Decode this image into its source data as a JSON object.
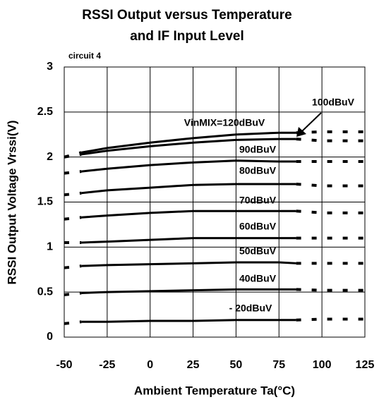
{
  "chart_data": {
    "type": "line",
    "title": [
      "RSSI Output versus Temperature",
      "and IF Input Level"
    ],
    "subtitle": "circuit 4",
    "xlabel": "Ambient Temperature Ta(°C)",
    "ylabel": "RSSI Output Voltage Vrssi(V)",
    "x": [
      -50,
      -40,
      -25,
      0,
      25,
      50,
      75,
      85,
      100,
      125
    ],
    "solid_range": [
      -40,
      85
    ],
    "series": [
      {
        "name": "VinMIX=120dBuV",
        "color": "#000000",
        "values": [
          2.0,
          2.05,
          2.1,
          2.16,
          2.21,
          2.25,
          2.27,
          2.27,
          2.28,
          2.28
        ]
      },
      {
        "name": "100dBuV",
        "color": "#000000",
        "values": [
          2.0,
          2.03,
          2.07,
          2.12,
          2.16,
          2.19,
          2.2,
          2.2,
          2.18,
          2.18
        ]
      },
      {
        "name": "90dBuV",
        "color": "#000000",
        "values": [
          1.82,
          1.84,
          1.87,
          1.91,
          1.94,
          1.96,
          1.95,
          1.95,
          1.95,
          1.95
        ]
      },
      {
        "name": "80dBuV",
        "color": "#000000",
        "values": [
          1.58,
          1.6,
          1.63,
          1.66,
          1.69,
          1.7,
          1.7,
          1.7,
          1.68,
          1.68
        ]
      },
      {
        "name": "70dBuV",
        "color": "#000000",
        "values": [
          1.31,
          1.33,
          1.35,
          1.38,
          1.4,
          1.4,
          1.4,
          1.4,
          1.38,
          1.38
        ]
      },
      {
        "name": "60dBuV",
        "color": "#000000",
        "values": [
          1.05,
          1.05,
          1.06,
          1.08,
          1.1,
          1.1,
          1.1,
          1.1,
          1.1,
          1.1
        ]
      },
      {
        "name": "50dBuV",
        "color": "#000000",
        "values": [
          0.77,
          0.79,
          0.8,
          0.81,
          0.82,
          0.83,
          0.83,
          0.82,
          0.82,
          0.82
        ]
      },
      {
        "name": "40dBuV",
        "color": "#000000",
        "values": [
          0.47,
          0.49,
          0.5,
          0.51,
          0.52,
          0.53,
          0.53,
          0.53,
          0.52,
          0.52
        ]
      },
      {
        "name": "- 20dBuV",
        "color": "#000000",
        "values": [
          0.15,
          0.17,
          0.17,
          0.18,
          0.18,
          0.19,
          0.19,
          0.19,
          0.2,
          0.2
        ]
      }
    ],
    "xlim": [
      -50,
      125
    ],
    "xticks": [
      -50,
      -25,
      0,
      25,
      50,
      75,
      100,
      125
    ],
    "ylim": [
      0,
      3
    ],
    "yticks": [
      0,
      0.5,
      1,
      1.5,
      2,
      2.5,
      3
    ],
    "grid": true
  }
}
